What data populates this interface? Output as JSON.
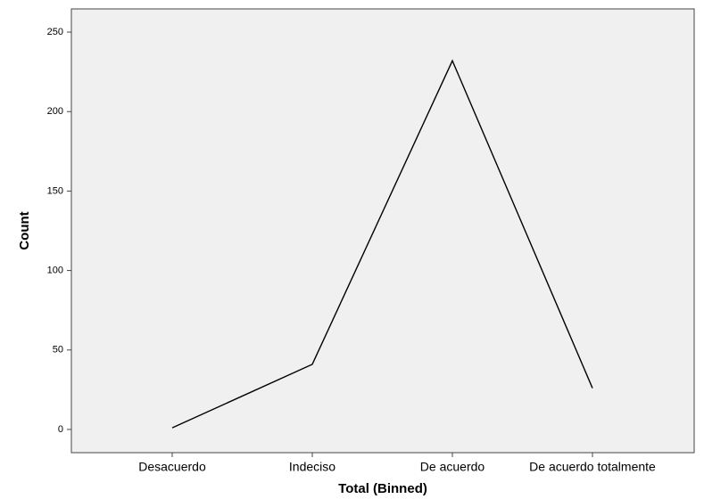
{
  "chart_data": {
    "type": "line",
    "x_label": "Total (Binned)",
    "y_label": "Count",
    "categories": [
      "Desacuerdo",
      "Indeciso",
      "De acuerdo",
      "De acuerdo totalmente"
    ],
    "values": [
      1,
      41,
      232,
      26
    ],
    "color": "#000000",
    "ylim": [
      -14.6,
      264.6
    ],
    "yticks": [
      0,
      50,
      100,
      150,
      200,
      250
    ],
    "grid": false
  }
}
